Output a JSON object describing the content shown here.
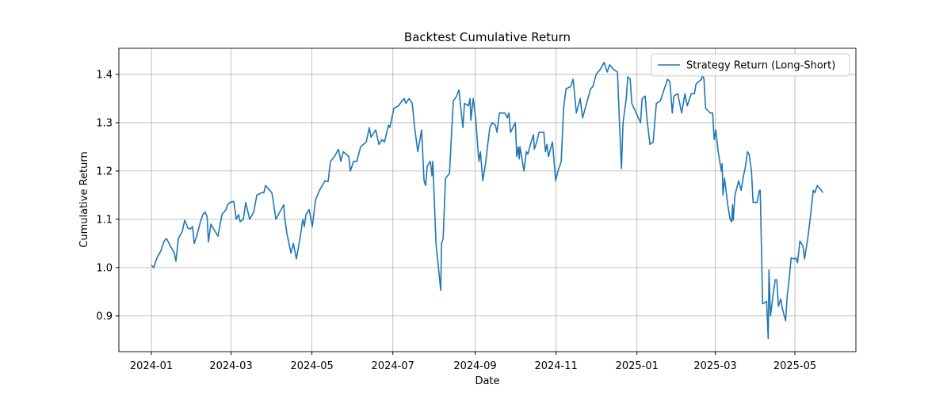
{
  "chart_data": {
    "type": "line",
    "title": "Backtest Cumulative Return",
    "xlabel": "Date",
    "ylabel": "Cumulative Return",
    "x": [
      0,
      1.8,
      4.2,
      7.2,
      9.6,
      11.4,
      14.3,
      17.3,
      18.5,
      20.3,
      23.3,
      25.1,
      27.5,
      29.3,
      31,
      32.3,
      34.1,
      37,
      38.8,
      40.5,
      42,
      43,
      44.8,
      50.2,
      53.2,
      56.2,
      57.4,
      59.2,
      62.1,
      64,
      65.7,
      66.9,
      69.3,
      71.1,
      74.1,
      77.1,
      79.5,
      83.1,
      84.8,
      86,
      90.8,
      92,
      93.8,
      96.8,
      99.8,
      100.4,
      102.2,
      105.2,
      107,
      109.3,
      112.3,
      114.1,
      115.3,
      116.5,
      118.9,
      121.3,
      123.7,
      126.7,
      130.9,
      133.2,
      135,
      138,
      141,
      142.8,
      144.6,
      148.8,
      150,
      152.4,
      154.8,
      157.7,
      161.9,
      164.3,
      165.5,
      169.1,
      171.5,
      173.9,
      175.7,
      178.7,
      179.8,
      182.8,
      186.4,
      188.8,
      190.6,
      191.8,
      194.2,
      196.6,
      198.4,
      200.8,
      203.7,
      205.5,
      206.7,
      207.9,
      210.3,
      211.5,
      212.1,
      214.5,
      218.1,
      218.7,
      219.9,
      221.7,
      224.7,
      225.9,
      227.6,
      230,
      231.8,
      233.6,
      234.8,
      236,
      239,
      240.2,
      240.8,
      242.6,
      244.4,
      246.8,
      248,
      249.8,
      252.1,
      253.3,
      255.1,
      256.9,
      259.3,
      260.5,
      262.3,
      266.5,
      268.3,
      269.5,
      270.7,
      272.5,
      274.3,
      275.4,
      276.6,
      277.2,
      277.8,
      280.8,
      282.6,
      283.8,
      286.2,
      288,
      288.6,
      290.4,
      292.2,
      295.8,
      297,
      298.2,
      299.3,
      302.3,
      304.7,
      306.5,
      308.9,
      310.7,
      312.5,
      316.1,
      317.9,
      320.3,
      323.2,
      325,
      328,
      331,
      332.8,
      335.2,
      338.2,
      341.2,
      343.6,
      345.4,
      348.3,
      351.3,
      352.5,
      354.3,
      355.5,
      357.9,
      359.1,
      360.9,
      362.1,
      368.7,
      369.9,
      372.2,
      373.4,
      375.8,
      378.2,
      380.6,
      383.6,
      389,
      390.8,
      392.6,
      393.8,
      396.7,
      399.7,
      402.1,
      403.9,
      406.9,
      409.3,
      410.5,
      414.7,
      415.3,
      416.5,
      417.7,
      421.2,
      423,
      424.2,
      425.4,
      427.2,
      429.6,
      430.2,
      430.8,
      432,
      434.4,
      436.2,
      437.4,
      438,
      438.6,
      439.8,
      442.7,
      444.5,
      446.3,
      447.5,
      449.3,
      450.5,
      452.3,
      453.5,
      456.5,
      458.3,
      458.9,
      460.7,
      463.7,
      464.9,
      465.5,
      466.6,
      468.4,
      470.2,
      471.4,
      472.6,
      474.4,
      475.6,
      478,
      479.2,
      481,
      482.2,
      484.6,
      485.8,
      487,
      488.8,
      491.1,
      492.3,
      494.7,
      496.5,
      498.9,
      500.1,
      501.9,
      504.9,
      506.1
    ],
    "series": [
      {
        "name": "Strategy Return (Long-Short)",
        "color": "#1f77b4",
        "values": [
          1.005,
          1.0,
          1.02,
          1.035,
          1.055,
          1.06,
          1.045,
          1.03,
          1.013,
          1.06,
          1.075,
          1.098,
          1.082,
          1.08,
          1.085,
          1.05,
          1.065,
          1.095,
          1.11,
          1.115,
          1.105,
          1.053,
          1.09,
          1.065,
          1.11,
          1.12,
          1.13,
          1.135,
          1.137,
          1.1,
          1.11,
          1.095,
          1.1,
          1.135,
          1.1,
          1.115,
          1.15,
          1.155,
          1.155,
          1.17,
          1.155,
          1.135,
          1.1,
          1.115,
          1.13,
          1.105,
          1.07,
          1.03,
          1.05,
          1.018,
          1.065,
          1.1,
          1.085,
          1.11,
          1.12,
          1.085,
          1.14,
          1.16,
          1.18,
          1.178,
          1.22,
          1.23,
          1.245,
          1.22,
          1.24,
          1.23,
          1.2,
          1.22,
          1.22,
          1.25,
          1.26,
          1.29,
          1.27,
          1.285,
          1.255,
          1.265,
          1.26,
          1.295,
          1.29,
          1.33,
          1.335,
          1.345,
          1.35,
          1.34,
          1.35,
          1.34,
          1.29,
          1.24,
          1.285,
          1.18,
          1.17,
          1.21,
          1.22,
          1.19,
          1.22,
          1.05,
          0.953,
          1.05,
          1.06,
          1.185,
          1.195,
          1.26,
          1.345,
          1.355,
          1.368,
          1.32,
          1.29,
          1.34,
          1.335,
          1.35,
          1.305,
          1.35,
          1.31,
          1.22,
          1.24,
          1.18,
          1.22,
          1.25,
          1.29,
          1.3,
          1.295,
          1.28,
          1.32,
          1.32,
          1.31,
          1.32,
          1.28,
          1.29,
          1.3,
          1.23,
          1.25,
          1.225,
          1.25,
          1.2,
          1.24,
          1.235,
          1.26,
          1.275,
          1.245,
          1.26,
          1.28,
          1.28,
          1.24,
          1.255,
          1.23,
          1.26,
          1.18,
          1.2,
          1.22,
          1.33,
          1.37,
          1.375,
          1.39,
          1.32,
          1.35,
          1.31,
          1.34,
          1.37,
          1.375,
          1.4,
          1.41,
          1.425,
          1.405,
          1.42,
          1.41,
          1.405,
          1.32,
          1.205,
          1.3,
          1.35,
          1.395,
          1.39,
          1.34,
          1.3,
          1.35,
          1.355,
          1.31,
          1.255,
          1.26,
          1.34,
          1.345,
          1.39,
          1.385,
          1.32,
          1.355,
          1.36,
          1.32,
          1.36,
          1.335,
          1.36,
          1.36,
          1.38,
          1.39,
          1.4,
          1.39,
          1.33,
          1.32,
          1.32,
          1.265,
          1.285,
          1.24,
          1.2,
          1.215,
          1.15,
          1.185,
          1.13,
          1.1,
          1.095,
          1.13,
          1.098,
          1.15,
          1.18,
          1.16,
          1.19,
          1.205,
          1.24,
          1.235,
          1.2,
          1.135,
          1.135,
          1.16,
          1.16,
          0.925,
          0.93,
          0.853,
          0.995,
          0.9,
          0.94,
          0.975,
          0.975,
          0.92,
          0.935,
          0.915,
          0.89,
          0.94,
          0.985,
          1.02,
          1.018,
          1.02,
          1.01,
          1.055,
          1.045,
          1.018,
          1.06,
          1.1,
          1.16,
          1.155,
          1.17,
          1.16,
          1.155
        ]
      }
    ],
    "xlim": [
      -24.5,
      531
    ],
    "xticks": [
      {
        "value": 0,
        "label": "2024-01"
      },
      {
        "value": 60,
        "label": "2024-03"
      },
      {
        "value": 121,
        "label": "2024-05"
      },
      {
        "value": 182,
        "label": "2024-07"
      },
      {
        "value": 244,
        "label": "2024-09"
      },
      {
        "value": 305,
        "label": "2024-11"
      },
      {
        "value": 366,
        "label": "2025-01"
      },
      {
        "value": 425,
        "label": "2025-03"
      },
      {
        "value": 485,
        "label": "2025-05"
      }
    ],
    "ylim": [
      0.826,
      1.454
    ],
    "yticks": [
      0.9,
      {
        "value": 1,
        "label": "1.0"
      },
      1.1,
      1.2,
      1.3,
      1.4
    ],
    "grid": true,
    "legend": "upper right"
  }
}
